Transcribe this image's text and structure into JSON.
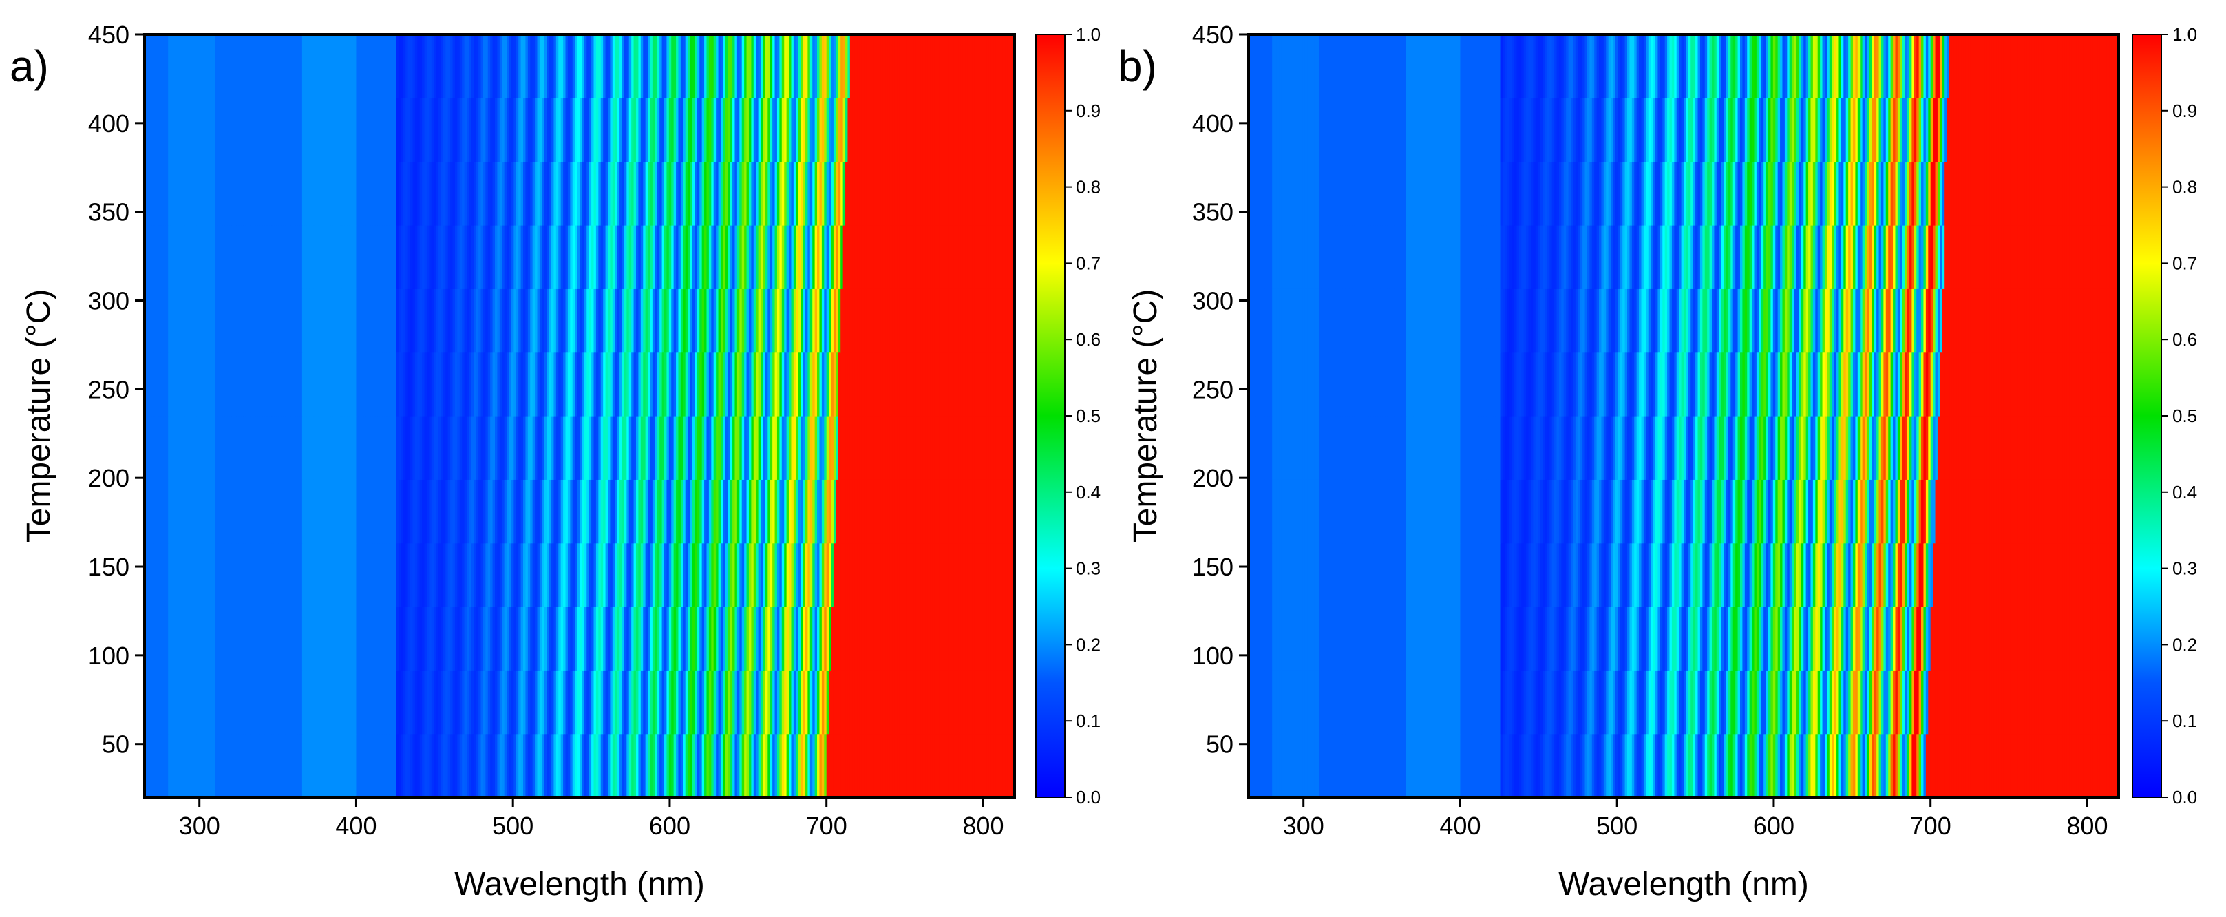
{
  "chart_data": [
    {
      "type": "heatmap",
      "panel_label": "a)",
      "xlabel": "Wavelength (nm)",
      "ylabel": "Temperature (°C)",
      "xlim": [
        265,
        820
      ],
      "ylim": [
        20,
        450
      ],
      "xticks": [
        300,
        400,
        500,
        600,
        700,
        800
      ],
      "yticks": [
        50,
        100,
        150,
        200,
        250,
        300,
        350,
        400,
        450
      ],
      "colorbar": {
        "min": 0.0,
        "max": 1.0,
        "ticks": [
          "0.0",
          "0.1",
          "0.2",
          "0.3",
          "0.4",
          "0.5",
          "0.6",
          "0.7",
          "0.8",
          "0.9",
          "1.0"
        ]
      },
      "description_values": {
        "uv_band_level": 0.17,
        "edge_at_min_temp_nm": 700,
        "edge_at_max_temp_nm": 715,
        "fringe_start_nm": 425,
        "fringe_period_nm": 12,
        "fringe_level_near_edge": 0.62,
        "plateau_level": 0.98
      }
    },
    {
      "type": "heatmap",
      "panel_label": "b)",
      "xlabel": "Wavelength (nm)",
      "ylabel": "Temperature (°C)",
      "xlim": [
        265,
        820
      ],
      "ylim": [
        20,
        450
      ],
      "xticks": [
        300,
        400,
        500,
        600,
        700,
        800
      ],
      "yticks": [
        50,
        100,
        150,
        200,
        250,
        300,
        350,
        400,
        450
      ],
      "colorbar": {
        "min": 0.0,
        "max": 1.0,
        "ticks": [
          "0.0",
          "0.1",
          "0.2",
          "0.3",
          "0.4",
          "0.5",
          "0.6",
          "0.7",
          "0.8",
          "0.9",
          "1.0"
        ]
      },
      "description_values": {
        "uv_band_level": 0.16,
        "edge_at_min_temp_nm": 697,
        "edge_at_max_temp_nm": 713,
        "fringe_start_nm": 425,
        "fringe_period_nm": 13,
        "fringe_level_near_edge": 0.86,
        "plateau_level": 0.98
      }
    }
  ]
}
